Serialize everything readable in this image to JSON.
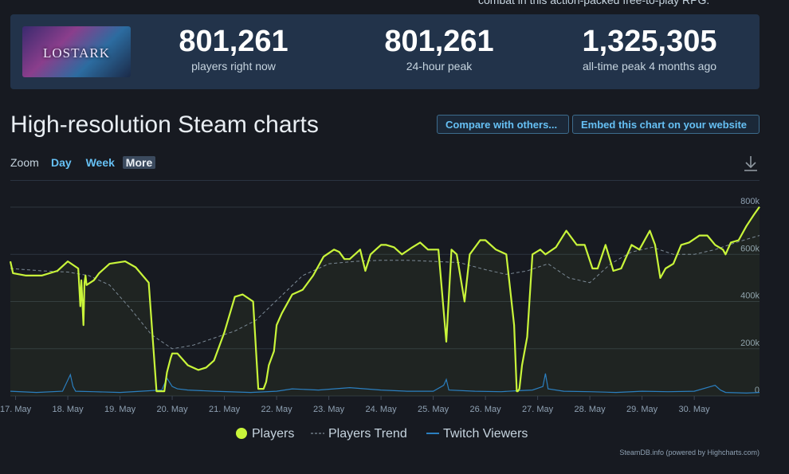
{
  "header": {
    "description_clip": "combat in this action-packed free-to-play RPG."
  },
  "stats": {
    "game_logo": "LOSTARK",
    "players_now": {
      "value": "801,261",
      "label": "players right now"
    },
    "peak_24h": {
      "value": "801,261",
      "label": "24-hour peak"
    },
    "peak_all_time": {
      "value": "1,325,305",
      "label": "all-time peak 4 months ago"
    }
  },
  "section": {
    "title": "High-resolution Steam charts",
    "compare_button": "Compare with others...",
    "embed_button": "Embed this chart on your website"
  },
  "zoom": {
    "label": "Zoom",
    "options": [
      "Day",
      "Week",
      "More"
    ],
    "active": "More"
  },
  "credit": "SteamDB.info (powered by Highcharts.com)",
  "colors": {
    "players": "#c9f53a",
    "trend": "#7c8a96",
    "twitch": "#2b7fc0",
    "accent": "#66c0f4"
  },
  "chart_data": {
    "type": "line",
    "title": "",
    "x_tick_labels": [
      "17. May",
      "18. May",
      "19. May",
      "20. May",
      "21. May",
      "22. May",
      "23. May",
      "24. May",
      "25. May",
      "26. May",
      "27. May",
      "28. May",
      "29. May",
      "30. May"
    ],
    "y_tick_labels": [
      "0",
      "200k",
      "400k",
      "600k",
      "800k"
    ],
    "y_ticks": [
      0,
      200000,
      400000,
      600000,
      800000
    ],
    "xlim": [
      16.9,
      31.25
    ],
    "ylim": [
      0,
      800000
    ],
    "grid": true,
    "legend_position": "bottom-center",
    "legend": [
      "Players",
      "Players Trend",
      "Twitch Viewers"
    ],
    "series": [
      {
        "name": "Players",
        "x": [
          16.9,
          16.95,
          17.2,
          17.5,
          17.8,
          18.0,
          18.2,
          18.24,
          18.26,
          18.3,
          18.32,
          18.34,
          18.36,
          18.5,
          18.6,
          18.8,
          19.1,
          19.3,
          19.55,
          19.7,
          19.85,
          19.9,
          19.97,
          20.0,
          20.1,
          20.3,
          20.5,
          20.65,
          20.8,
          21.0,
          21.2,
          21.35,
          21.55,
          21.65,
          21.75,
          21.8,
          21.85,
          21.95,
          22.0,
          22.1,
          22.3,
          22.5,
          22.7,
          22.9,
          23.1,
          23.2,
          23.3,
          23.4,
          23.6,
          23.7,
          23.8,
          23.9,
          24.0,
          24.1,
          24.25,
          24.4,
          24.6,
          24.75,
          24.9,
          25.1,
          25.25,
          25.35,
          25.4,
          25.45,
          25.6,
          25.7,
          25.8,
          25.9,
          26.0,
          26.2,
          26.4,
          26.55,
          26.6,
          26.62,
          26.65,
          26.7,
          26.8,
          26.9,
          27.05,
          27.15,
          27.35,
          27.55,
          27.75,
          27.9,
          28.05,
          28.15,
          28.3,
          28.45,
          28.6,
          28.8,
          28.95,
          29.15,
          29.25,
          29.35,
          29.45,
          29.6,
          29.75,
          29.9,
          30.1,
          30.25,
          30.4,
          30.55,
          30.6,
          30.7,
          30.85,
          31.0,
          31.15,
          31.25
        ],
        "y": [
          570000,
          520000,
          510000,
          510000,
          530000,
          570000,
          540000,
          380000,
          490000,
          300000,
          480000,
          510000,
          470000,
          490000,
          520000,
          560000,
          570000,
          545000,
          480000,
          20000,
          20000,
          100000,
          160000,
          180000,
          180000,
          130000,
          110000,
          120000,
          150000,
          270000,
          420000,
          430000,
          400000,
          30000,
          30000,
          60000,
          130000,
          190000,
          300000,
          350000,
          430000,
          450000,
          510000,
          590000,
          620000,
          610000,
          580000,
          580000,
          620000,
          530000,
          600000,
          620000,
          640000,
          640000,
          630000,
          600000,
          630000,
          650000,
          620000,
          620000,
          230000,
          620000,
          610000,
          600000,
          400000,
          600000,
          630000,
          660000,
          660000,
          620000,
          600000,
          300000,
          20000,
          20000,
          30000,
          130000,
          250000,
          600000,
          620000,
          600000,
          630000,
          700000,
          640000,
          640000,
          540000,
          540000,
          640000,
          530000,
          540000,
          640000,
          620000,
          700000,
          640000,
          500000,
          540000,
          560000,
          640000,
          650000,
          680000,
          680000,
          640000,
          620000,
          600000,
          650000,
          660000,
          720000,
          770000,
          801261
        ]
      },
      {
        "name": "Players Trend",
        "x": [
          16.9,
          17.5,
          18.0,
          18.4,
          18.8,
          19.2,
          19.6,
          20.0,
          20.4,
          20.8,
          21.2,
          21.6,
          22.0,
          22.5,
          23.0,
          23.5,
          24.0,
          24.5,
          25.0,
          25.5,
          26.0,
          26.4,
          26.8,
          27.2,
          27.6,
          28.0,
          28.4,
          28.8,
          29.2,
          29.6,
          30.0,
          30.4,
          30.8,
          31.25
        ],
        "y": [
          540000,
          530000,
          525000,
          510000,
          470000,
          370000,
          260000,
          200000,
          215000,
          245000,
          275000,
          320000,
          405000,
          510000,
          560000,
          570000,
          575000,
          575000,
          570000,
          565000,
          535000,
          515000,
          530000,
          560000,
          500000,
          480000,
          560000,
          610000,
          630000,
          600000,
          600000,
          620000,
          650000,
          680000
        ]
      },
      {
        "name": "Twitch Viewers",
        "x": [
          16.9,
          17.4,
          17.9,
          18.05,
          18.1,
          18.15,
          18.5,
          19.0,
          19.4,
          19.8,
          19.9,
          20.0,
          20.1,
          20.3,
          20.8,
          21.5,
          22.0,
          22.3,
          22.8,
          23.4,
          24.0,
          24.5,
          25.0,
          25.2,
          25.25,
          25.3,
          25.8,
          26.3,
          26.6,
          26.9,
          27.1,
          27.15,
          27.2,
          27.5,
          28.0,
          28.5,
          29.0,
          29.5,
          30.0,
          30.4,
          30.5,
          30.6,
          31.0,
          31.25
        ],
        "y": [
          20000,
          15000,
          20000,
          90000,
          40000,
          20000,
          18000,
          15000,
          20000,
          25000,
          75000,
          40000,
          30000,
          25000,
          20000,
          15000,
          20000,
          30000,
          25000,
          35000,
          25000,
          20000,
          20000,
          45000,
          70000,
          25000,
          20000,
          18000,
          22000,
          25000,
          40000,
          95000,
          30000,
          20000,
          18000,
          15000,
          20000,
          18000,
          20000,
          45000,
          25000,
          15000,
          12000,
          15000
        ]
      }
    ]
  }
}
